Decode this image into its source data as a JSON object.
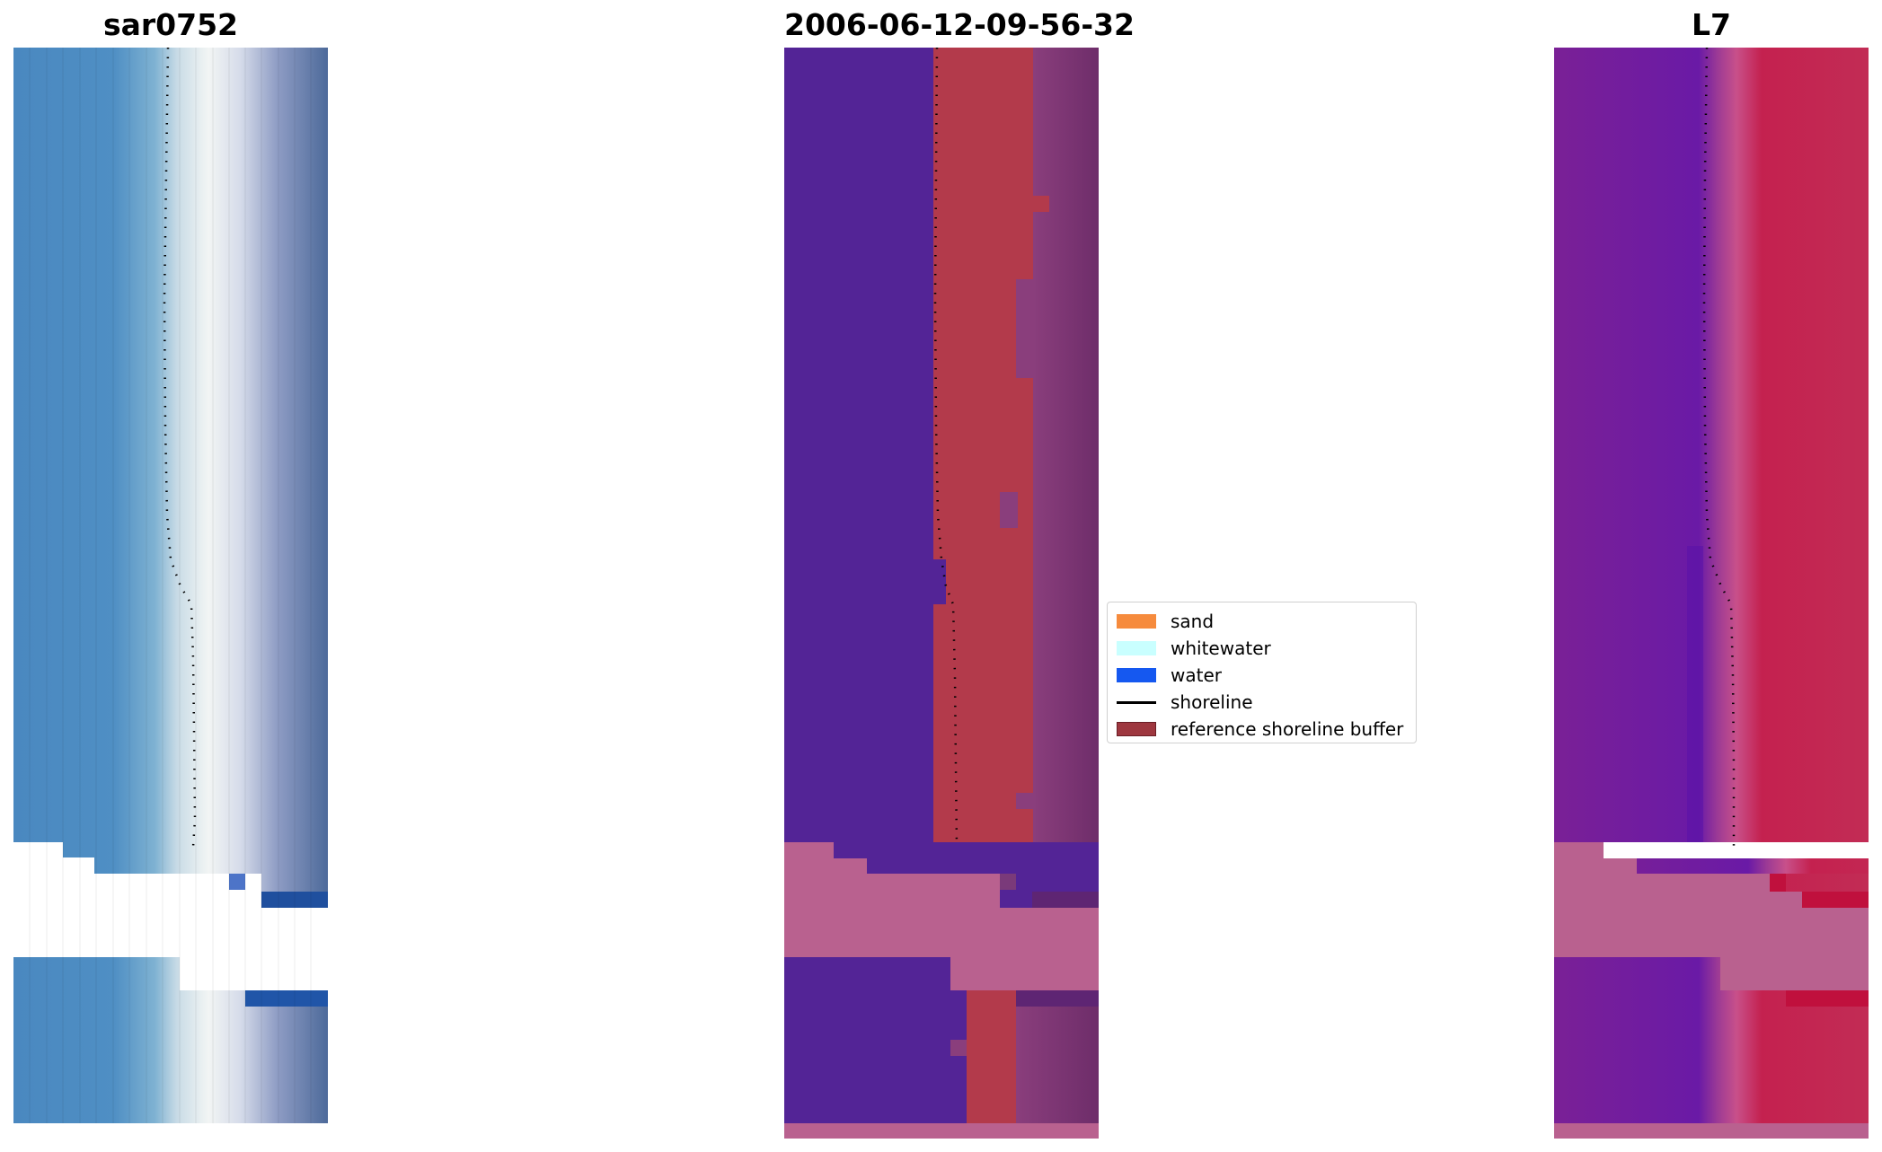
{
  "panels": [
    {
      "id": "rgb",
      "title": "sar0752"
    },
    {
      "id": "classified",
      "title": "2006-06-12-09-56-32"
    },
    {
      "id": "index",
      "title": "L7"
    }
  ],
  "legend": {
    "items": [
      {
        "label": "sand",
        "color": "#f68b3d",
        "kind": "patch"
      },
      {
        "label": "whitewater",
        "color": "#c9ffff",
        "kind": "patch"
      },
      {
        "label": "water",
        "color": "#1558f0",
        "kind": "patch"
      },
      {
        "label": "shoreline",
        "color": "#000000",
        "kind": "line"
      },
      {
        "label": "reference shoreline buffer",
        "color": "#9e373f",
        "kind": "patch"
      }
    ]
  }
}
